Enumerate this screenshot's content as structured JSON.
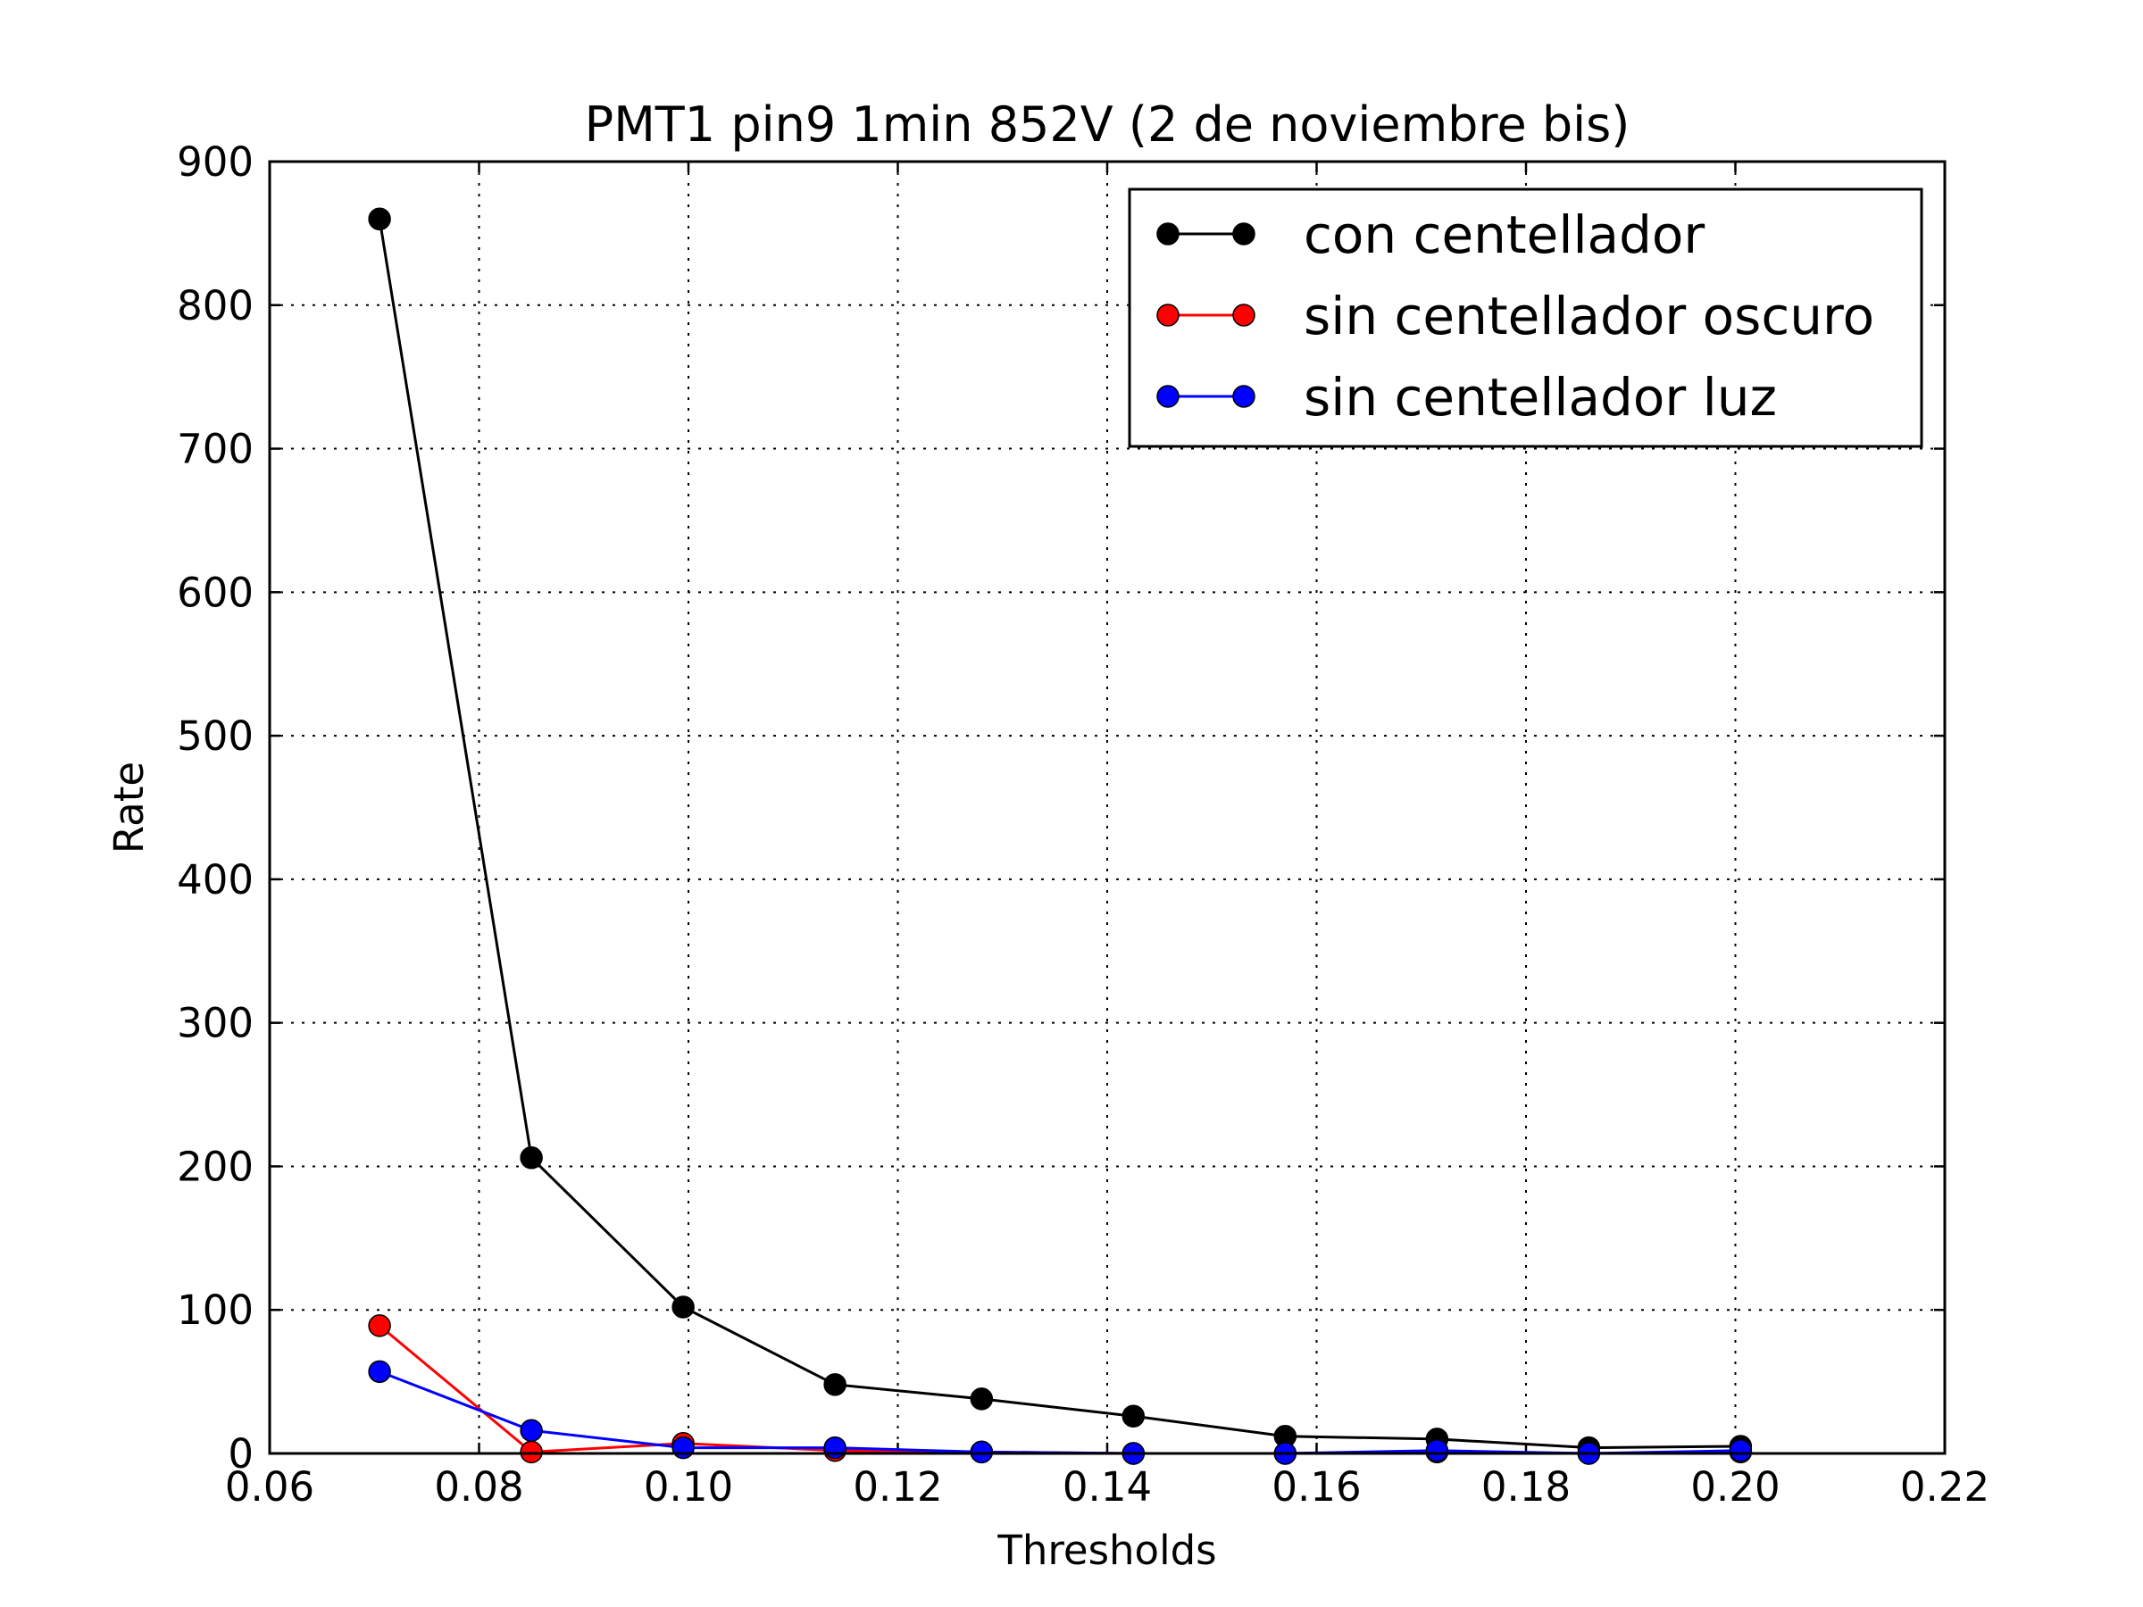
{
  "chart_data": {
    "type": "line",
    "title": "PMT1 pin9 1min 852V (2 de noviembre bis)",
    "xlabel": "Thresholds",
    "ylabel": "Rate",
    "xlim": [
      0.06,
      0.22
    ],
    "ylim": [
      0,
      900
    ],
    "xticks": [
      "0.06",
      "0.08",
      "0.10",
      "0.12",
      "0.14",
      "0.16",
      "0.18",
      "0.20",
      "0.22"
    ],
    "yticks": [
      "0",
      "100",
      "200",
      "300",
      "400",
      "500",
      "600",
      "700",
      "800",
      "900"
    ],
    "grid": true,
    "legend_position": "top-right",
    "x": [
      0.0705,
      0.085,
      0.0995,
      0.114,
      0.128,
      0.1425,
      0.157,
      0.1715,
      0.186,
      0.2005
    ],
    "series": [
      {
        "name": "con centellador",
        "color": "#000000",
        "values": [
          860,
          206,
          102,
          48,
          38,
          26,
          12,
          10,
          4,
          5
        ]
      },
      {
        "name": "sin centellador oscuro",
        "color": "#ff0000",
        "values": [
          89,
          1,
          7,
          2,
          1,
          0,
          0,
          1,
          0,
          1
        ]
      },
      {
        "name": "sin centellador luz",
        "color": "#0000ff",
        "values": [
          57,
          16,
          4,
          4,
          1,
          0,
          0,
          2,
          0,
          2
        ]
      }
    ]
  }
}
